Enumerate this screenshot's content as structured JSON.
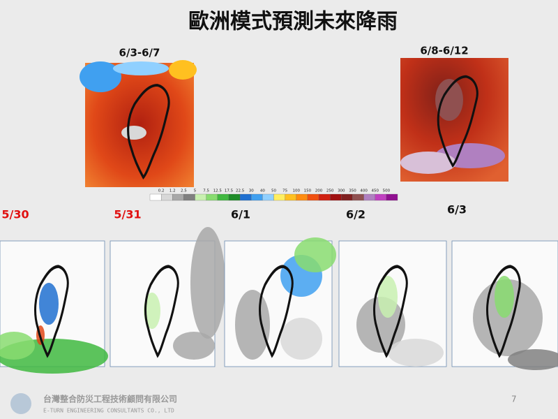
{
  "title": "歐洲模式預測未來降雨",
  "period_maps": [
    {
      "label": "6/3-6/7"
    },
    {
      "label": "6/8-6/12"
    }
  ],
  "colorbar": {
    "ticks": [
      0.2,
      1.2,
      2.5,
      5,
      7.5,
      12.5,
      17.5,
      22.5,
      30,
      40,
      50,
      75,
      100,
      150,
      200,
      250,
      300,
      350,
      400,
      450,
      500
    ],
    "colors": [
      "#ffffff",
      "#d8d8d8",
      "#a8a8a8",
      "#808080",
      "#c8f0b0",
      "#88dc70",
      "#40b840",
      "#1e8c28",
      "#2070d0",
      "#40a0f0",
      "#90d0ff",
      "#ffee60",
      "#ffc020",
      "#ff8c10",
      "#f05010",
      "#d02010",
      "#a01010",
      "#802020",
      "#905050",
      "#b080c0",
      "#c040c0",
      "#901090"
    ]
  },
  "daily_maps": [
    {
      "date": "5/30",
      "color": "#e01010"
    },
    {
      "date": "5/31",
      "color": "#e01010"
    },
    {
      "date": "6/1",
      "color": "#111111"
    },
    {
      "date": "6/2",
      "color": "#111111"
    },
    {
      "date": "6/3",
      "color": "#111111"
    }
  ],
  "footer": {
    "company": "台灣整合防災工程技術顧問有限公司",
    "company_en": "E-TURN ENGINEERING CONSULTANTS CO., LTD",
    "page": "7"
  }
}
